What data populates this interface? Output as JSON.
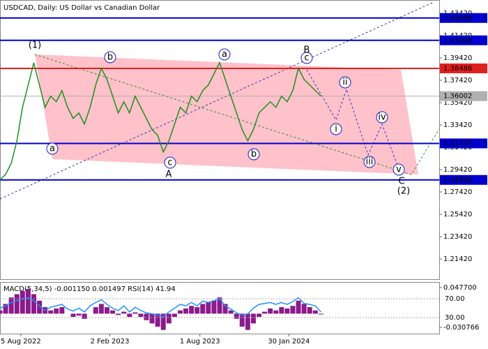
{
  "chart_data": {
    "type": "line",
    "title": "USDCAD, Daily:  US Dollar vs Canadian Dollar",
    "color": "#1f8f1f",
    "values": [
      1.285,
      1.29,
      1.3,
      1.32,
      1.35,
      1.37,
      1.39,
      1.37,
      1.35,
      1.36,
      1.355,
      1.365,
      1.35,
      1.34,
      1.345,
      1.335,
      1.35,
      1.37,
      1.385,
      1.375,
      1.36,
      1.345,
      1.355,
      1.345,
      1.36,
      1.35,
      1.34,
      1.33,
      1.325,
      1.31,
      1.32,
      1.335,
      1.35,
      1.345,
      1.36,
      1.355,
      1.365,
      1.37,
      1.38,
      1.39,
      1.375,
      1.36,
      1.345,
      1.33,
      1.32,
      1.33,
      1.345,
      1.35,
      1.355,
      1.35,
      1.36,
      1.355,
      1.365,
      1.385,
      1.375,
      1.37,
      1.365,
      1.36
    ],
    "xlim": [
      0,
      78
    ],
    "xticks": [
      {
        "value": 3.7,
        "label": "5 Aug 2022"
      },
      {
        "value": 19.5,
        "label": "2 Feb 2023"
      },
      {
        "value": 35.5,
        "label": "1 Aug 2023"
      },
      {
        "value": 51.3,
        "label": "30 Jan 2024"
      }
    ],
    "ylim": [
      1.1961,
      1.4461
    ],
    "yticks": [
      {
        "value": 1.4342,
        "label": "1.43420"
      },
      {
        "value": 1.4142,
        "label": "1.41420"
      },
      {
        "value": 1.3942,
        "label": "1.39420"
      },
      {
        "value": 1.3742,
        "label": "1.37420"
      },
      {
        "value": 1.3542,
        "label": "1.35420"
      },
      {
        "value": 1.3342,
        "label": "1.33420"
      },
      {
        "value": 1.3142,
        "label": "1.31420"
      },
      {
        "value": 1.2942,
        "label": "1.29420"
      },
      {
        "value": 1.2742,
        "label": "1.27420"
      },
      {
        "value": 1.2542,
        "label": "1.25420"
      },
      {
        "value": 1.2342,
        "label": "1.23420"
      },
      {
        "value": 1.2142,
        "label": "1.21420"
      }
    ],
    "levels": [
      {
        "value": 1.43,
        "label": "1.43000",
        "color": "#0000cc"
      },
      {
        "value": 1.41,
        "label": "1.41000",
        "color": "#0000cc"
      },
      {
        "value": 1.38486,
        "label": "1.38486",
        "color": "#e02020"
      },
      {
        "value": 1.36002,
        "label": "1.36002",
        "color": "#b0b0b0"
      },
      {
        "value": 1.3177,
        "label": "1.31770",
        "color": "#0000cc"
      },
      {
        "value": 1.285,
        "label": "1.28500",
        "color": "#0000cc"
      }
    ],
    "waves": [
      {
        "label": "(1)",
        "color": "#2e8b2e"
      },
      {
        "label": "a",
        "color": "#1a1acc"
      },
      {
        "label": "b",
        "color": "#1a1acc"
      },
      {
        "label": "c",
        "color": "#1a1acc"
      },
      {
        "label": "A",
        "color": "#c03030"
      },
      {
        "label": "a",
        "color": "#1a1acc"
      },
      {
        "label": "b",
        "color": "#1a1acc"
      },
      {
        "label": "c",
        "color": "#1a1acc"
      },
      {
        "label": "B",
        "color": "#c03030"
      },
      {
        "label": "i",
        "color": "#1a1acc"
      },
      {
        "label": "ii",
        "color": "#1a1acc"
      },
      {
        "label": "iii",
        "color": "#1a1acc"
      },
      {
        "label": "iv",
        "color": "#1a1acc"
      },
      {
        "label": "v",
        "color": "#1a1acc"
      },
      {
        "label": "C",
        "color": "#c03030"
      },
      {
        "label": "(2)",
        "color": "#2e8b2e"
      }
    ],
    "indicator": {
      "title": "MACD(5,34,5) -0.001150 0.001497 RSI(14) 41.94",
      "macd": {
        "color": "#8b1a8b",
        "ylim": [
          -0.030766,
          0.0477
        ],
        "yticks": [
          {
            "value": 0.0477,
            "label": "0.047700"
          },
          {
            "value": -0.030766,
            "label": "-0.030766"
          }
        ],
        "values": [
          0.005,
          0.015,
          0.025,
          0.03,
          0.035,
          0.038,
          0.03,
          0.02,
          0.01,
          0.005,
          0.008,
          0.01,
          0,
          -0.005,
          -0.003,
          -0.008,
          0,
          0.01,
          0.015,
          0.01,
          0.005,
          -0.002,
          0.003,
          -0.005,
          0.002,
          -0.005,
          -0.01,
          -0.015,
          -0.02,
          -0.025,
          -0.015,
          -0.005,
          0.005,
          0.008,
          0.012,
          0.01,
          0.015,
          0.018,
          0.02,
          0.025,
          0.015,
          0.005,
          -0.008,
          -0.02,
          -0.025,
          -0.015,
          -0.005,
          0.003,
          0.008,
          0.005,
          0.01,
          0.008,
          0.012,
          0.02,
          0.015,
          0.01,
          0.005,
          -0.00115
        ]
      },
      "rsi": {
        "color": "#1e90ff",
        "ylim": [
          -4,
          104
        ],
        "yticks": [
          {
            "value": 70,
            "label": "70.00"
          },
          {
            "value": 30,
            "label": "30.00"
          }
        ],
        "values": [
          50,
          55,
          62,
          66,
          70,
          72,
          65,
          55,
          45,
          52,
          55,
          58,
          48,
          44,
          50,
          42,
          55,
          62,
          68,
          58,
          50,
          45,
          55,
          42,
          52,
          45,
          40,
          38,
          35,
          32,
          42,
          50,
          58,
          55,
          62,
          55,
          65,
          62,
          66,
          70,
          55,
          48,
          40,
          35,
          38,
          50,
          58,
          60,
          62,
          58,
          62,
          58,
          64,
          72,
          60,
          58,
          55,
          41.94
        ]
      }
    }
  }
}
